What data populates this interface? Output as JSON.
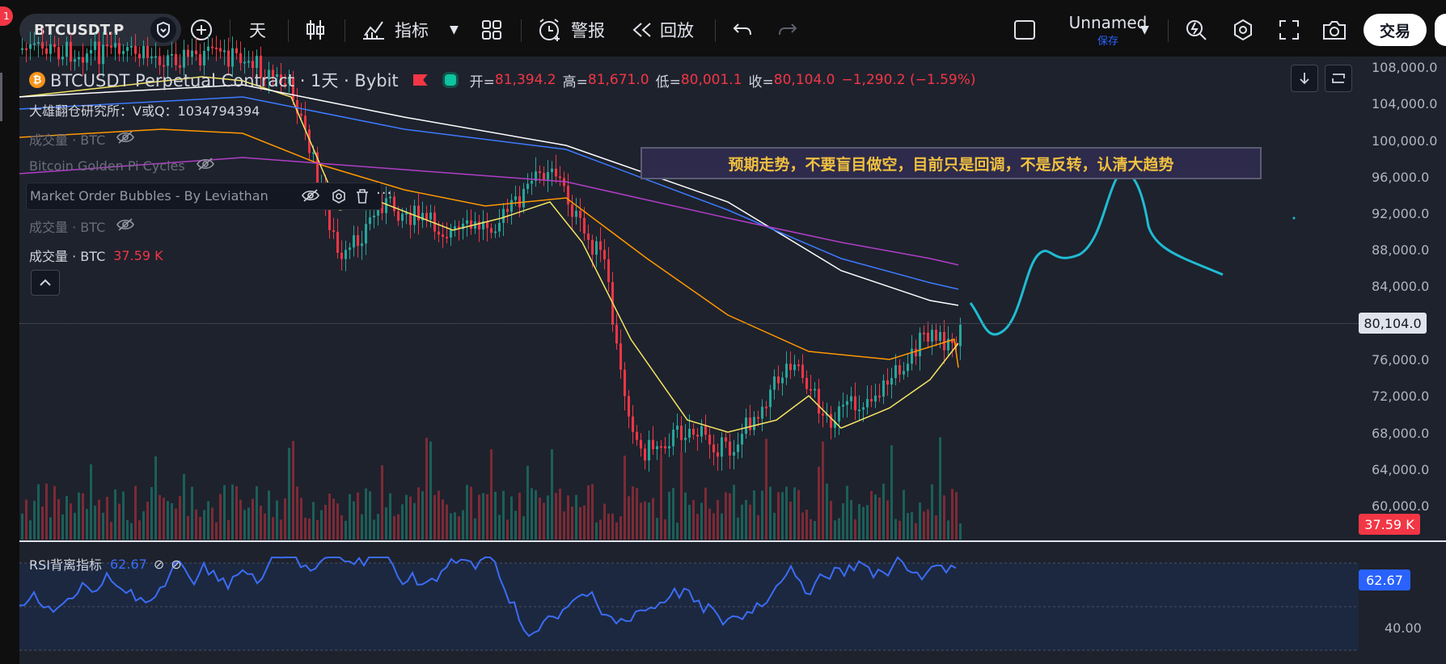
{
  "toolbar": {
    "notification_count": "1",
    "symbol": "BTCUSDT.P",
    "interval": "天",
    "indicators_label": "指标",
    "alert_label": "警报",
    "replay_label": "回放",
    "layout_name": "Unnamed",
    "save_label": "保存",
    "trade_label": "交易"
  },
  "legend": {
    "title": "BTCUSDT Perpetual Contract · 1天 · Bybit",
    "open_label": "开=",
    "open": "81,394.2",
    "high_label": "高=",
    "high": "81,671.0",
    "low_label": "低=",
    "low": "80,001.1",
    "close_label": "收=",
    "close": "80,104.0",
    "change": "−1,290.2 (−1.59%)",
    "watermark_note": "大雄翻仓研究所：V或Q：1034794394",
    "indicators": [
      "成交量 · BTC",
      "Bitcoin Golden Pi Cycles",
      "Market Order Bubbles - By Leviathan",
      "成交量 · BTC",
      "成交量 · BTC"
    ],
    "volume_value": "37.59 K"
  },
  "annotation": "预期走势，不要盲目做空，目前只是回调，不是反转，认清大趋势",
  "price_axis": {
    "labels": [
      "108,000.0",
      "104,000.0",
      "100,000.0",
      "96,000.0",
      "92,000.0",
      "88,000.0",
      "84,000.0",
      "80,104.0",
      "76,000.0",
      "72,000.0",
      "68,000.0",
      "64,000.0",
      "60,000.0"
    ],
    "current_price": "80,104.0",
    "volume_tag": "37.59 K"
  },
  "rsi": {
    "label": "RSI背离指标",
    "value": "62.67",
    "tag": "62.67",
    "axis_label": "40.00"
  },
  "colors": {
    "up": "#26a69a",
    "down": "#f23645",
    "ma_fast": "#f5e663",
    "ma_mid": "#ff9800",
    "ma_white": "#ffffff",
    "ma_blue": "#3d7bff",
    "ma_purple": "#b03ec6",
    "forecast": "#1fbcd2",
    "rsi_line": "#3b6cf5"
  },
  "icons": {
    "add": "plus-circle-icon",
    "bars": "candles-icon",
    "layout": "grid-icon",
    "alert": "alarm-clock-icon",
    "replay": "rewind-icon",
    "undo": "undo-icon",
    "redo": "redo-icon",
    "screenshot": "camera-icon"
  }
}
